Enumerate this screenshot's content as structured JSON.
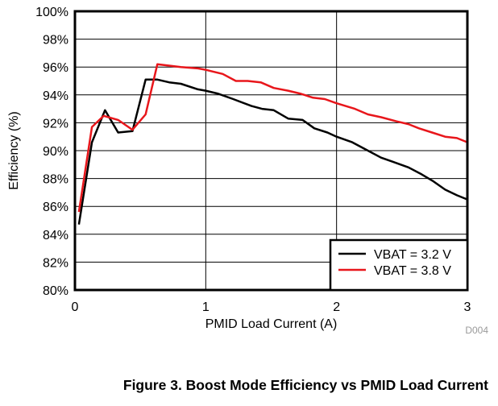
{
  "chart_data": {
    "type": "line",
    "title": "Figure 3. Boost Mode Efficiency vs PMID Load Current",
    "xlabel": "PMID Load Current (A)",
    "ylabel": "Efficiency (%)",
    "xlim": [
      0,
      3
    ],
    "ylim": [
      80,
      100
    ],
    "xticks": [
      0,
      1,
      2,
      3
    ],
    "xtick_labels": [
      "0",
      "1",
      "2",
      "3"
    ],
    "yticks": [
      80,
      82,
      84,
      86,
      88,
      90,
      92,
      94,
      96,
      98,
      100
    ],
    "ytick_labels": [
      "80%",
      "82%",
      "84%",
      "86%",
      "88%",
      "90%",
      "92%",
      "94%",
      "96%",
      "98%",
      "100%"
    ],
    "grid": true,
    "legend_position": "bottom-right",
    "annotation": "D004",
    "series": [
      {
        "name": "VBAT = 3.2 V",
        "color": "#000000",
        "x": [
          0.03,
          0.13,
          0.23,
          0.33,
          0.44,
          0.54,
          0.63,
          0.72,
          0.81,
          0.94,
          1.0,
          1.09,
          1.21,
          1.35,
          1.43,
          1.52,
          1.63,
          1.74,
          1.83,
          1.93,
          2.0,
          2.12,
          2.24,
          2.34,
          2.43,
          2.55,
          2.65,
          2.74,
          2.83,
          2.92,
          3.0
        ],
        "y": [
          84.7,
          90.6,
          92.9,
          91.3,
          91.4,
          95.1,
          95.1,
          94.9,
          94.8,
          94.4,
          94.3,
          94.1,
          93.7,
          93.2,
          93.0,
          92.9,
          92.3,
          92.2,
          91.6,
          91.3,
          91.0,
          90.6,
          90.0,
          89.5,
          89.2,
          88.8,
          88.3,
          87.8,
          87.2,
          86.8,
          86.5
        ]
      },
      {
        "name": "VBAT = 3.8 V",
        "color": "#e8161b",
        "x": [
          0.03,
          0.13,
          0.22,
          0.33,
          0.44,
          0.54,
          0.63,
          0.72,
          0.81,
          0.94,
          1.0,
          1.13,
          1.23,
          1.32,
          1.42,
          1.52,
          1.63,
          1.72,
          1.82,
          1.91,
          2.0,
          2.14,
          2.24,
          2.34,
          2.46,
          2.55,
          2.63,
          2.73,
          2.83,
          2.92,
          3.0
        ],
        "y": [
          85.6,
          91.7,
          92.5,
          92.2,
          91.5,
          92.6,
          96.2,
          96.1,
          96.0,
          95.9,
          95.8,
          95.5,
          95.0,
          95.0,
          94.9,
          94.5,
          94.3,
          94.1,
          93.8,
          93.7,
          93.4,
          93.0,
          92.6,
          92.4,
          92.1,
          91.9,
          91.6,
          91.3,
          91.0,
          90.9,
          90.6
        ]
      }
    ]
  },
  "caption": "Figure 3. Boost Mode Efficiency vs PMID Load Current"
}
